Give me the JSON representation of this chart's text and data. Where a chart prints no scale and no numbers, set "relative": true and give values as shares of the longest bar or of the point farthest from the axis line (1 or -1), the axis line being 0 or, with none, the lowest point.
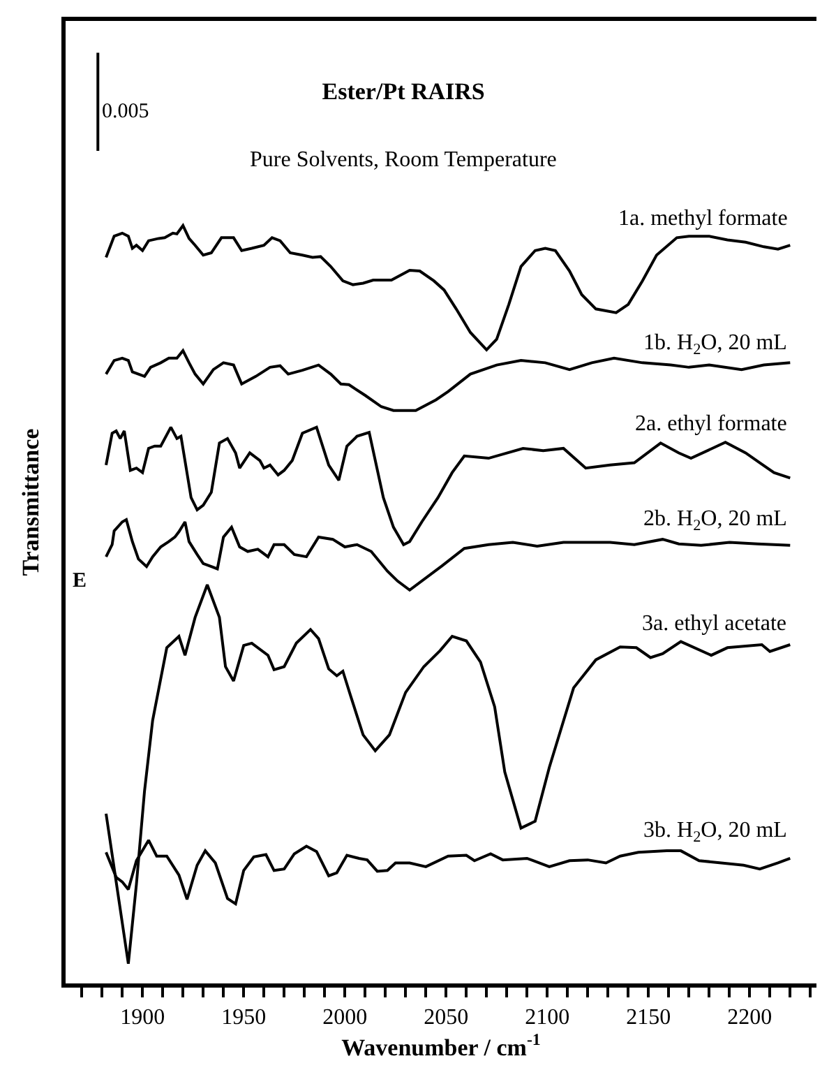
{
  "chart_data": {
    "type": "line",
    "title": "Ester/Pt RAIRS",
    "subtitle": "Pure Solvents, Room Temperature",
    "xlabel": "Wavenumber / cm$^{-1}$",
    "ylabel": "Transmittance",
    "relative": true,
    "legend": false,
    "marker": "none",
    "line_style": "solid",
    "tick_labels": "x",
    "annotations": [
      "0.005",
      "E"
    ],
    "xlim": [
      1862,
      2233
    ],
    "xticks": [
      {
        "value": 1870,
        "label": null
      },
      {
        "value": 1880,
        "label": null
      },
      {
        "value": 1890,
        "label": null
      },
      1900,
      {
        "value": 1910,
        "label": null
      },
      {
        "value": 1920,
        "label": null
      },
      {
        "value": 1930,
        "label": null
      },
      {
        "value": 1940,
        "label": null
      },
      1950,
      {
        "value": 1960,
        "label": null
      },
      {
        "value": 1970,
        "label": null
      },
      {
        "value": 1980,
        "label": null
      },
      {
        "value": 1990,
        "label": null
      },
      2000,
      {
        "value": 2010,
        "label": null
      },
      {
        "value": 2020,
        "label": null
      },
      {
        "value": 2030,
        "label": null
      },
      {
        "value": 2040,
        "label": null
      },
      2050,
      {
        "value": 2060,
        "label": null
      },
      {
        "value": 2070,
        "label": null
      },
      {
        "value": 2080,
        "label": null
      },
      {
        "value": 2090,
        "label": null
      },
      2100,
      {
        "value": 2110,
        "label": null
      },
      {
        "value": 2120,
        "label": null
      },
      {
        "value": 2130,
        "label": null
      },
      {
        "value": 2140,
        "label": null
      },
      2150,
      {
        "value": 2160,
        "label": null
      },
      {
        "value": 2170,
        "label": null
      },
      {
        "value": 2180,
        "label": null
      },
      {
        "value": 2190,
        "label": null
      },
      2200,
      {
        "value": 2210,
        "label": null
      },
      {
        "value": 2220,
        "label": null
      },
      {
        "value": 2230,
        "label": null
      }
    ],
    "series": [
      {
        "name": "1a. methyl formate",
        "color": "#000000",
        "x": [
          1882,
          1886,
          1890,
          1893,
          1895,
          1897,
          1900,
          1903,
          1908,
          1911,
          1915,
          1917,
          1920,
          1923,
          1926,
          1930,
          1934,
          1939,
          1945,
          1949,
          1954,
          1960,
          1964,
          1968,
          1973,
          1979,
          1984,
          1988,
          1993,
          1999,
          2004,
          2009,
          2014,
          2023,
          2032,
          2037,
          2044,
          2049,
          2055,
          2062,
          2070,
          2075,
          2081,
          2087,
          2094,
          2099,
          2104,
          2111,
          2117,
          2124,
          2134,
          2140,
          2147,
          2154,
          2164,
          2170,
          2180,
          2189,
          2198,
          2207,
          2214,
          2220
        ],
        "values": [
          0.958,
          0.986,
          0.99,
          0.986,
          0.97,
          0.974,
          0.967,
          0.98,
          0.983,
          0.984,
          0.99,
          0.989,
          1.0,
          0.983,
          0.974,
          0.961,
          0.964,
          0.984,
          0.984,
          0.967,
          0.97,
          0.974,
          0.984,
          0.98,
          0.964,
          0.961,
          0.958,
          0.959,
          0.946,
          0.927,
          0.922,
          0.924,
          0.928,
          0.928,
          0.941,
          0.94,
          0.927,
          0.915,
          0.89,
          0.859,
          0.836,
          0.85,
          0.896,
          0.946,
          0.967,
          0.97,
          0.967,
          0.94,
          0.909,
          0.89,
          0.885,
          0.896,
          0.927,
          0.961,
          0.984,
          0.986,
          0.986,
          0.981,
          0.978,
          0.972,
          0.969,
          0.974
        ]
      },
      {
        "name": "1b. H$_{2}$O, 20 mL",
        "color": "#000000",
        "x": [
          1882,
          1886,
          1890,
          1893,
          1895,
          1898,
          1901,
          1904,
          1909,
          1913,
          1917,
          1920,
          1923,
          1926,
          1930,
          1935,
          1940,
          1945,
          1949,
          1956,
          1963,
          1968,
          1972,
          1979,
          1987,
          1993,
          1998,
          2002,
          2010,
          2018,
          2024,
          2035,
          2045,
          2051,
          2062,
          2075,
          2087,
          2099,
          2111,
          2122,
          2133,
          2147,
          2161,
          2170,
          2180,
          2196,
          2207,
          2220
        ],
        "values": [
          0.804,
          0.822,
          0.825,
          0.822,
          0.807,
          0.804,
          0.801,
          0.813,
          0.819,
          0.825,
          0.825,
          0.835,
          0.819,
          0.804,
          0.791,
          0.81,
          0.819,
          0.816,
          0.791,
          0.801,
          0.813,
          0.815,
          0.804,
          0.809,
          0.816,
          0.804,
          0.791,
          0.79,
          0.776,
          0.761,
          0.756,
          0.756,
          0.77,
          0.781,
          0.804,
          0.816,
          0.822,
          0.819,
          0.81,
          0.819,
          0.825,
          0.819,
          0.816,
          0.813,
          0.816,
          0.81,
          0.816,
          0.819
        ]
      },
      {
        "name": "2a. ethyl formate",
        "color": "#000000",
        "x": [
          1882,
          1885,
          1887,
          1889,
          1891,
          1894,
          1897,
          1900,
          1903,
          1906,
          1909,
          1914,
          1917,
          1919,
          1924,
          1927,
          1930,
          1934,
          1938,
          1942,
          1946,
          1948,
          1953,
          1958,
          1960,
          1963,
          1967,
          1970,
          1974,
          1979,
          1986,
          1992,
          1997,
          2001,
          2006,
          2012,
          2019,
          2024,
          2029,
          2032,
          2038,
          2046,
          2053,
          2059,
          2071,
          2088,
          2098,
          2108,
          2119,
          2131,
          2143,
          2156,
          2165,
          2171,
          2188,
          2198,
          2205,
          2212,
          2220
        ],
        "values": [
          0.684,
          0.726,
          0.729,
          0.719,
          0.729,
          0.677,
          0.68,
          0.674,
          0.706,
          0.709,
          0.709,
          0.734,
          0.719,
          0.722,
          0.641,
          0.625,
          0.631,
          0.648,
          0.713,
          0.719,
          0.7,
          0.68,
          0.7,
          0.69,
          0.68,
          0.684,
          0.671,
          0.677,
          0.69,
          0.726,
          0.734,
          0.684,
          0.664,
          0.709,
          0.722,
          0.727,
          0.641,
          0.602,
          0.579,
          0.583,
          0.609,
          0.641,
          0.674,
          0.696,
          0.693,
          0.706,
          0.703,
          0.706,
          0.68,
          0.684,
          0.687,
          0.713,
          0.7,
          0.693,
          0.714,
          0.7,
          0.687,
          0.674,
          0.667
        ]
      },
      {
        "name": "2b. H$_{2}$O, 20 mL",
        "color": "#000000",
        "x": [
          1882,
          1885,
          1886,
          1890,
          1892,
          1895,
          1898,
          1902,
          1905,
          1909,
          1913,
          1916,
          1918,
          1921,
          1923,
          1927,
          1930,
          1934,
          1937,
          1940,
          1944,
          1948,
          1952,
          1957,
          1962,
          1965,
          1970,
          1975,
          1981,
          1987,
          1994,
          2000,
          2006,
          2013,
          2021,
          2026,
          2032,
          2048,
          2059,
          2071,
          2083,
          2095,
          2108,
          2119,
          2131,
          2143,
          2157,
          2165,
          2176,
          2190,
          2204,
          2220
        ],
        "values": [
          0.563,
          0.579,
          0.597,
          0.609,
          0.612,
          0.583,
          0.56,
          0.55,
          0.563,
          0.576,
          0.583,
          0.589,
          0.596,
          0.609,
          0.583,
          0.566,
          0.554,
          0.55,
          0.547,
          0.589,
          0.602,
          0.576,
          0.57,
          0.573,
          0.563,
          0.579,
          0.579,
          0.566,
          0.563,
          0.589,
          0.586,
          0.576,
          0.579,
          0.57,
          0.544,
          0.531,
          0.519,
          0.551,
          0.574,
          0.579,
          0.582,
          0.577,
          0.582,
          0.582,
          0.582,
          0.579,
          0.586,
          0.58,
          0.578,
          0.582,
          0.58,
          0.578
        ]
      },
      {
        "name": "3a. ethyl acetate",
        "color": "#000000",
        "x": [
          1882,
          1893,
          1897,
          1901,
          1905,
          1909,
          1912,
          1918,
          1921,
          1926,
          1932,
          1938,
          1941,
          1945,
          1950,
          1954,
          1962,
          1965,
          1970,
          1976,
          1983,
          1987,
          1992,
          1996,
          1999,
          2003,
          2009,
          2015,
          2022,
          2030,
          2039,
          2047,
          2053,
          2060,
          2067,
          2074,
          2079,
          2087,
          2094,
          2101,
          2113,
          2124,
          2136,
          2144,
          2151,
          2157,
          2166,
          2181,
          2189,
          2206,
          2210,
          2220
        ],
        "values": [
          0.224,
          0.026,
          0.131,
          0.254,
          0.347,
          0.402,
          0.443,
          0.458,
          0.433,
          0.483,
          0.526,
          0.483,
          0.418,
          0.399,
          0.446,
          0.449,
          0.433,
          0.414,
          0.418,
          0.449,
          0.467,
          0.455,
          0.415,
          0.406,
          0.412,
          0.378,
          0.328,
          0.307,
          0.328,
          0.384,
          0.418,
          0.439,
          0.458,
          0.452,
          0.424,
          0.365,
          0.279,
          0.205,
          0.214,
          0.285,
          0.39,
          0.427,
          0.444,
          0.443,
          0.43,
          0.435,
          0.451,
          0.433,
          0.443,
          0.447,
          0.438,
          0.447
        ]
      },
      {
        "name": "3b. H$_{2}$O, 20 mL",
        "color": "#000000",
        "x": [
          1882,
          1887,
          1890,
          1893,
          1897,
          1903,
          1907,
          1912,
          1918,
          1922,
          1927,
          1931,
          1936,
          1942,
          1946,
          1950,
          1955,
          1961,
          1965,
          1970,
          1975,
          1981,
          1986,
          1992,
          1996,
          2001,
          2007,
          2011,
          2016,
          2021,
          2025,
          2032,
          2040,
          2051,
          2060,
          2064,
          2072,
          2078,
          2090,
          2101,
          2111,
          2120,
          2129,
          2136,
          2145,
          2159,
          2166,
          2175,
          2186,
          2197,
          2205,
          2214,
          2220
        ],
        "values": [
          0.173,
          0.14,
          0.134,
          0.124,
          0.162,
          0.189,
          0.168,
          0.168,
          0.143,
          0.111,
          0.156,
          0.175,
          0.159,
          0.112,
          0.105,
          0.149,
          0.167,
          0.17,
          0.149,
          0.151,
          0.171,
          0.181,
          0.174,
          0.142,
          0.146,
          0.169,
          0.165,
          0.163,
          0.148,
          0.149,
          0.159,
          0.159,
          0.154,
          0.168,
          0.169,
          0.162,
          0.171,
          0.163,
          0.165,
          0.154,
          0.162,
          0.163,
          0.159,
          0.168,
          0.173,
          0.175,
          0.175,
          0.162,
          0.159,
          0.156,
          0.151,
          0.159,
          0.165
        ]
      }
    ]
  }
}
